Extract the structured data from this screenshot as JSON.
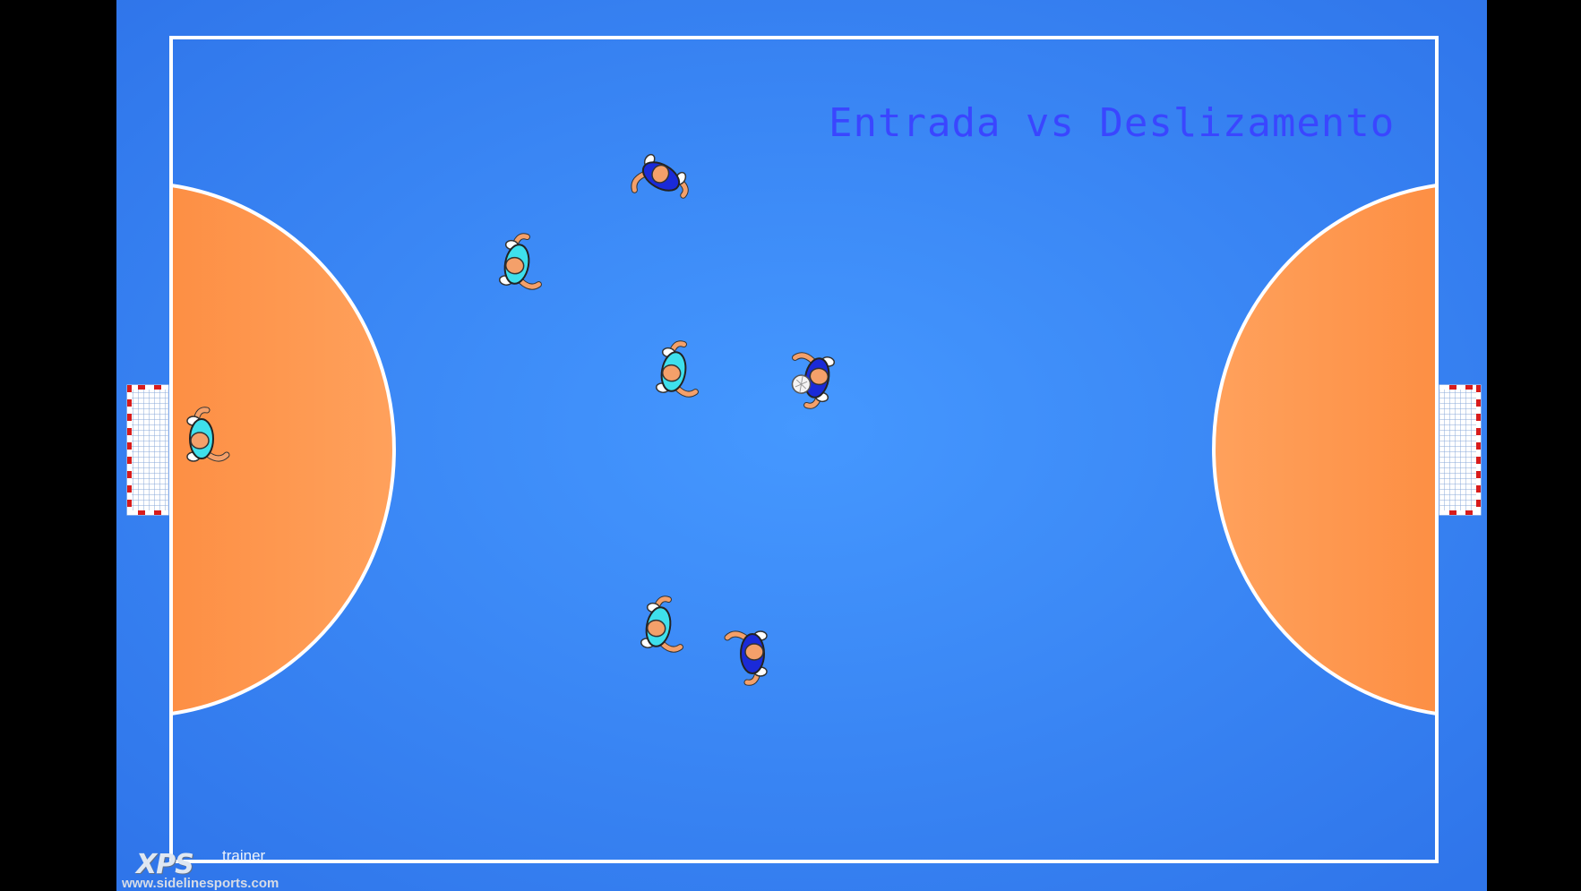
{
  "title": "Entrada vs Deslizamento",
  "branding": {
    "logo": "XPS",
    "sub": "trainer",
    "url": "www.sidelinesports.com"
  },
  "colors": {
    "court": "#3f8ffd",
    "court_edge": "#2f75ea",
    "penalty_area": "#ff9a55",
    "lines": "#ffffff",
    "title": "#3a46ff",
    "team_cyan": "#3ee0ec",
    "team_blue": "#1a2ad8",
    "skin": "#f4a06a",
    "goal_red": "#d81c1c"
  },
  "players": [
    {
      "team": "cyan",
      "role": "goalkeeper",
      "has_ball": false
    },
    {
      "team": "cyan",
      "has_ball": false
    },
    {
      "team": "cyan",
      "has_ball": false
    },
    {
      "team": "cyan",
      "has_ball": false
    },
    {
      "team": "blue",
      "has_ball": false
    },
    {
      "team": "blue",
      "has_ball": true
    },
    {
      "team": "blue",
      "has_ball": false
    }
  ],
  "icons": {
    "ball": "futsal-ball-icon",
    "goal": "goal-net-icon",
    "player": "player-topdown-icon"
  }
}
